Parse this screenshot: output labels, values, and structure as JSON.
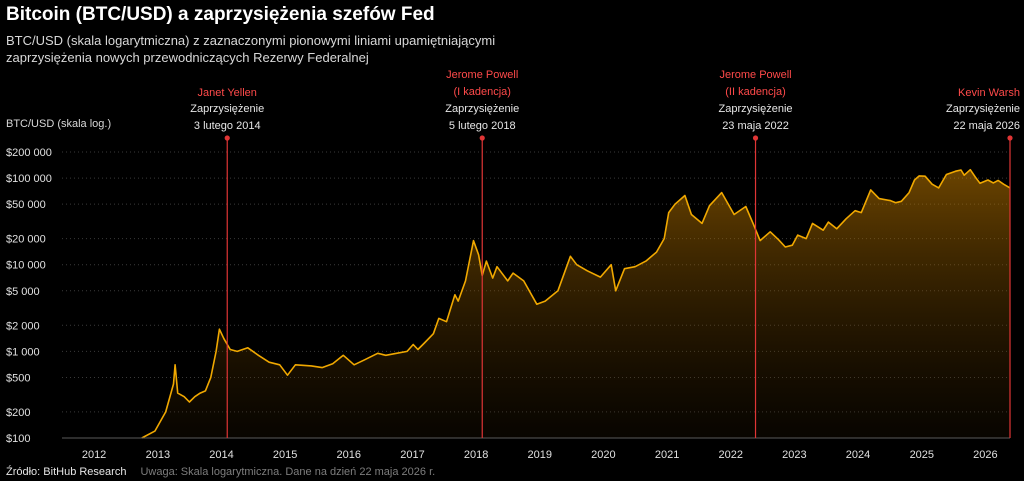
{
  "header": {
    "title": "Bitcoin (BTC/USD) a zaprzysiężenia szefów Fed",
    "subtitle": "BTC/USD (skala logarytmiczna) z zaznaczonymi pionowymi liniami upamiętniającymi zaprzysiężenia nowych przewodniczących Rezerwy Federalnej"
  },
  "footer": {
    "source": "Źródło: BitHub Research",
    "note": "Uwaga: Skala logarytmiczna. Dane na dzień 22 maja 2026 r."
  },
  "colors": {
    "line": "#f0a800",
    "event": "#e03535",
    "background": "#000000",
    "grid": "#3a3a3a"
  },
  "chart_data": {
    "type": "area",
    "title": "Bitcoin (BTC/USD) a zaprzysiężenia szefów Fed",
    "ylabel": "BTC/USD (skala log.)",
    "yscale": "log",
    "ylim": [
      100,
      200000
    ],
    "xlim": [
      "2011-07-01",
      "2026-05-22"
    ],
    "grid": true,
    "y_ticks": [
      {
        "value": 100,
        "label": "$100"
      },
      {
        "value": 200,
        "label": "$200"
      },
      {
        "value": 500,
        "label": "$500"
      },
      {
        "value": 1000,
        "label": "$1 000"
      },
      {
        "value": 2000,
        "label": "$2 000"
      },
      {
        "value": 5000,
        "label": "$5 000"
      },
      {
        "value": 10000,
        "label": "$10 000"
      },
      {
        "value": 20000,
        "label": "$20 000"
      },
      {
        "value": 50000,
        "label": "$50 000"
      },
      {
        "value": 100000,
        "label": "$100 000"
      },
      {
        "value": 200000,
        "label": "$200 000"
      }
    ],
    "x_ticks": [
      {
        "date": "2012-01-01",
        "label": "2012"
      },
      {
        "date": "2013-01-01",
        "label": "2013"
      },
      {
        "date": "2014-01-01",
        "label": "2014"
      },
      {
        "date": "2015-01-01",
        "label": "2015"
      },
      {
        "date": "2016-01-01",
        "label": "2016"
      },
      {
        "date": "2017-01-01",
        "label": "2017"
      },
      {
        "date": "2018-01-01",
        "label": "2018"
      },
      {
        "date": "2019-01-01",
        "label": "2019"
      },
      {
        "date": "2020-01-01",
        "label": "2020"
      },
      {
        "date": "2021-01-01",
        "label": "2021"
      },
      {
        "date": "2022-01-01",
        "label": "2022"
      },
      {
        "date": "2023-01-01",
        "label": "2023"
      },
      {
        "date": "2024-01-01",
        "label": "2024"
      },
      {
        "date": "2025-01-01",
        "label": "2025"
      },
      {
        "date": "2026-01-01",
        "label": "2026"
      }
    ],
    "series": [
      {
        "values": [
          [
            "2012-10-01",
            100
          ],
          [
            "2012-12-15",
            120
          ],
          [
            "2013-02-15",
            200
          ],
          [
            "2013-04-01",
            420
          ],
          [
            "2013-04-10",
            700
          ],
          [
            "2013-04-25",
            330
          ],
          [
            "2013-06-01",
            300
          ],
          [
            "2013-07-01",
            260
          ],
          [
            "2013-08-01",
            300
          ],
          [
            "2013-09-01",
            330
          ],
          [
            "2013-10-01",
            350
          ],
          [
            "2013-11-01",
            500
          ],
          [
            "2013-12-01",
            1000
          ],
          [
            "2013-12-20",
            1800
          ],
          [
            "2014-01-15",
            1400
          ],
          [
            "2014-02-20",
            1050
          ],
          [
            "2014-04-01",
            1000
          ],
          [
            "2014-06-01",
            1100
          ],
          [
            "2014-08-01",
            900
          ],
          [
            "2014-10-01",
            750
          ],
          [
            "2014-12-01",
            700
          ],
          [
            "2015-01-15",
            530
          ],
          [
            "2015-03-01",
            700
          ],
          [
            "2015-06-01",
            680
          ],
          [
            "2015-08-01",
            650
          ],
          [
            "2015-10-01",
            720
          ],
          [
            "2015-12-01",
            900
          ],
          [
            "2016-02-01",
            700
          ],
          [
            "2016-04-01",
            800
          ],
          [
            "2016-06-15",
            950
          ],
          [
            "2016-08-01",
            900
          ],
          [
            "2016-10-01",
            950
          ],
          [
            "2016-12-01",
            1000
          ],
          [
            "2017-01-05",
            1200
          ],
          [
            "2017-02-01",
            1050
          ],
          [
            "2017-03-10",
            1250
          ],
          [
            "2017-05-01",
            1600
          ],
          [
            "2017-06-01",
            2400
          ],
          [
            "2017-07-15",
            2200
          ],
          [
            "2017-09-01",
            4500
          ],
          [
            "2017-09-20",
            3800
          ],
          [
            "2017-11-01",
            6500
          ],
          [
            "2017-12-17",
            19000
          ],
          [
            "2018-01-15",
            13000
          ],
          [
            "2018-02-05",
            7500
          ],
          [
            "2018-03-01",
            11000
          ],
          [
            "2018-04-06",
            7000
          ],
          [
            "2018-05-01",
            9500
          ],
          [
            "2018-07-01",
            6500
          ],
          [
            "2018-08-01",
            8000
          ],
          [
            "2018-10-01",
            6500
          ],
          [
            "2018-12-15",
            3500
          ],
          [
            "2019-02-01",
            3800
          ],
          [
            "2019-04-15",
            5000
          ],
          [
            "2019-06-26",
            12500
          ],
          [
            "2019-08-01",
            10000
          ],
          [
            "2019-10-01",
            8500
          ],
          [
            "2019-12-15",
            7200
          ],
          [
            "2020-02-15",
            10000
          ],
          [
            "2020-03-12",
            5000
          ],
          [
            "2020-05-01",
            9000
          ],
          [
            "2020-07-01",
            9500
          ],
          [
            "2020-09-01",
            11000
          ],
          [
            "2020-11-01",
            14000
          ],
          [
            "2020-12-15",
            20000
          ],
          [
            "2021-01-10",
            40000
          ],
          [
            "2021-02-15",
            50000
          ],
          [
            "2021-04-13",
            63000
          ],
          [
            "2021-05-20",
            38000
          ],
          [
            "2021-07-20",
            30000
          ],
          [
            "2021-09-01",
            48000
          ],
          [
            "2021-11-10",
            68000
          ],
          [
            "2022-01-20",
            38000
          ],
          [
            "2022-03-28",
            47000
          ],
          [
            "2022-05-12",
            29000
          ],
          [
            "2022-06-18",
            19000
          ],
          [
            "2022-08-15",
            24000
          ],
          [
            "2022-10-01",
            19500
          ],
          [
            "2022-11-10",
            16000
          ],
          [
            "2022-12-20",
            16800
          ],
          [
            "2023-01-20",
            22000
          ],
          [
            "2023-03-10",
            20000
          ],
          [
            "2023-04-15",
            30000
          ],
          [
            "2023-06-15",
            25000
          ],
          [
            "2023-07-15",
            31000
          ],
          [
            "2023-09-01",
            26000
          ],
          [
            "2023-10-25",
            34000
          ],
          [
            "2023-12-15",
            42000
          ],
          [
            "2024-01-20",
            40000
          ],
          [
            "2024-03-14",
            73000
          ],
          [
            "2024-05-01",
            58000
          ],
          [
            "2024-07-05",
            55000
          ],
          [
            "2024-08-05",
            52000
          ],
          [
            "2024-09-06",
            54000
          ],
          [
            "2024-10-20",
            68000
          ],
          [
            "2024-11-20",
            95000
          ],
          [
            "2024-12-17",
            106000
          ],
          [
            "2025-01-20",
            105000
          ],
          [
            "2025-03-01",
            85000
          ],
          [
            "2025-04-08",
            77000
          ],
          [
            "2025-05-22",
            110000
          ],
          [
            "2025-07-14",
            120000
          ],
          [
            "2025-08-14",
            124000
          ],
          [
            "2025-09-01",
            108000
          ],
          [
            "2025-10-06",
            125000
          ],
          [
            "2025-11-05",
            102000
          ],
          [
            "2025-12-01",
            87000
          ],
          [
            "2026-01-15",
            95000
          ],
          [
            "2026-02-15",
            88000
          ],
          [
            "2026-03-15",
            94000
          ],
          [
            "2026-04-15",
            85000
          ],
          [
            "2026-05-22",
            77000
          ]
        ]
      }
    ],
    "events": [
      {
        "date": "2014-02-03",
        "name": "Janet Yellen",
        "name2": "",
        "line1": "Zaprzysiężenie",
        "line2": "3 lutego 2014"
      },
      {
        "date": "2018-02-05",
        "name": "Jerome Powell",
        "name2": "(I kadencja)",
        "line1": "Zaprzysiężenie",
        "line2": "5 lutego 2018"
      },
      {
        "date": "2022-05-23",
        "name": "Jerome Powell",
        "name2": "(II kadencja)",
        "line1": "Zaprzysiężenie",
        "line2": "23 maja 2022"
      },
      {
        "date": "2026-05-22",
        "name": "Kevin Warsh",
        "name2": "",
        "line1": "Zaprzysiężenie",
        "line2": "22 maja 2026"
      }
    ]
  }
}
